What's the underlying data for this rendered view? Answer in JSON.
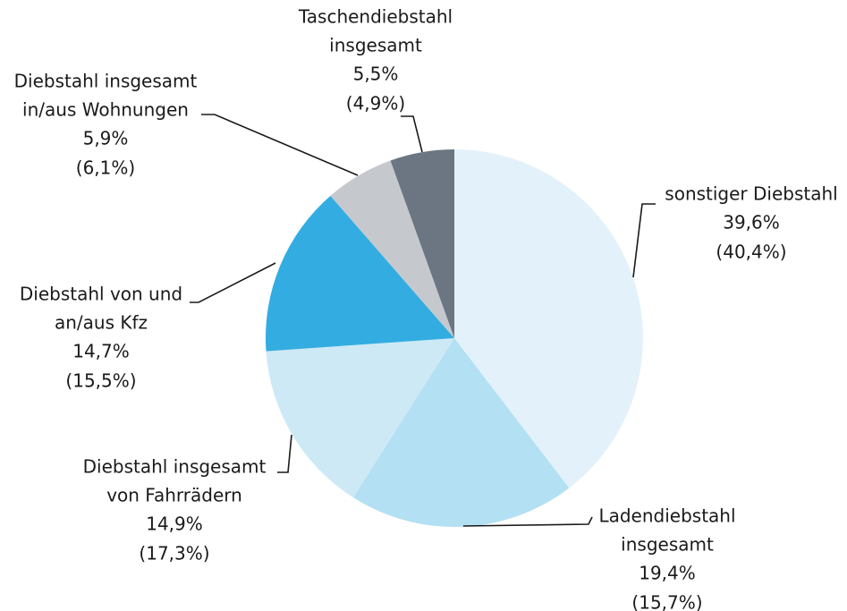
{
  "chart_data": {
    "type": "pie",
    "categories": [
      [
        "sonstiger Diebstahl"
      ],
      [
        "Ladendiebstahl",
        "insgesamt"
      ],
      [
        "Diebstahl insgesamt",
        "von Fahrrädern"
      ],
      [
        "Diebstahl von und",
        "an/aus Kfz"
      ],
      [
        "Diebstahl insgesamt",
        "in/aus Wohnungen"
      ],
      [
        "Taschendiebstahl",
        "insgesamt"
      ]
    ],
    "values": [
      39.6,
      19.4,
      14.9,
      14.7,
      5.9,
      5.5
    ],
    "value_labels": [
      "39,6%",
      "19,4%",
      "14,9%",
      "14,7%",
      "5,9%",
      "5,5%"
    ],
    "prior_values": [
      40.4,
      15.7,
      17.3,
      15.5,
      6.1,
      4.9
    ],
    "prior_value_labels": [
      "(40,4%)",
      "(15,7%)",
      "(17,3%)",
      "(15,5%)",
      "(6,1%)",
      "(4,9%)"
    ],
    "colors": [
      "#e3f2fa",
      "#b3e0f2",
      "#cde9f6",
      "#33ade1",
      "#c5c9cd",
      "#6b7682"
    ]
  }
}
